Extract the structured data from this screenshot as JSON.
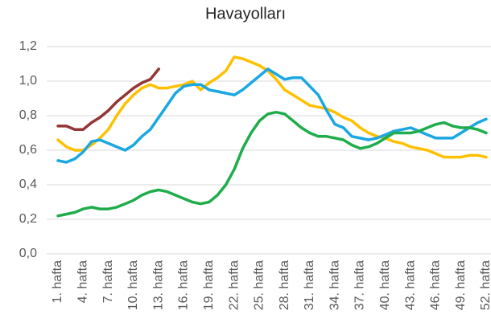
{
  "chart_data": {
    "type": "line",
    "title": "Havayolları",
    "categories": [
      "1. hafta",
      null,
      null,
      "4. hafta",
      null,
      null,
      "7. hafta",
      null,
      null,
      "10. hafta",
      null,
      null,
      "13. hafta",
      null,
      null,
      "16. hafta",
      null,
      null,
      "19. hafta",
      null,
      null,
      "22. hafta",
      null,
      null,
      "25. hafta",
      null,
      null,
      "28. hafta",
      null,
      null,
      "31. hafta",
      null,
      null,
      "34. hafta",
      null,
      null,
      "37. hafta",
      null,
      null,
      "40. hafta",
      null,
      null,
      "43. hafta",
      null,
      null,
      "46. hafta",
      null,
      null,
      "49. hafta",
      null,
      null,
      "52. hafta"
    ],
    "series": [
      {
        "color": "#943634",
        "values": [
          0.74,
          0.74,
          0.72,
          0.72,
          0.76,
          0.79,
          0.83,
          0.88,
          0.92,
          0.96,
          0.99,
          1.01,
          1.07,
          null,
          null,
          null,
          null,
          null,
          null,
          null,
          null,
          null,
          null,
          null,
          null,
          null,
          null,
          null,
          null,
          null,
          null,
          null,
          null,
          null,
          null,
          null,
          null,
          null,
          null,
          null,
          null,
          null,
          null,
          null,
          null,
          null,
          null,
          null,
          null,
          null,
          null,
          null
        ]
      },
      {
        "color": "#ffc000",
        "values": [
          0.66,
          0.62,
          0.6,
          0.6,
          0.63,
          0.67,
          0.72,
          0.8,
          0.87,
          0.92,
          0.96,
          0.98,
          0.96,
          0.96,
          0.97,
          0.98,
          1.0,
          0.95,
          0.99,
          1.02,
          1.06,
          1.14,
          1.13,
          1.11,
          1.09,
          1.06,
          1.01,
          0.95,
          0.92,
          0.89,
          0.86,
          0.85,
          0.84,
          0.82,
          0.79,
          0.77,
          0.73,
          0.7,
          0.68,
          0.67,
          0.65,
          0.64,
          0.62,
          0.61,
          0.6,
          0.58,
          0.56,
          0.56,
          0.56,
          0.57,
          0.57,
          0.56
        ]
      },
      {
        "color": "#1aa7e2",
        "values": [
          0.54,
          0.53,
          0.55,
          0.59,
          0.65,
          0.66,
          0.64,
          0.62,
          0.6,
          0.63,
          0.68,
          0.72,
          0.79,
          0.86,
          0.93,
          0.97,
          0.98,
          0.98,
          0.95,
          0.94,
          0.93,
          0.92,
          0.95,
          0.99,
          1.03,
          1.07,
          1.04,
          1.01,
          1.02,
          1.02,
          0.97,
          0.92,
          0.83,
          0.75,
          0.73,
          0.68,
          0.67,
          0.66,
          0.67,
          0.69,
          0.71,
          0.72,
          0.73,
          0.71,
          0.69,
          0.67,
          0.67,
          0.67,
          0.7,
          0.73,
          0.76,
          0.78
        ]
      },
      {
        "color": "#1fad4b",
        "values": [
          0.22,
          0.23,
          0.24,
          0.26,
          0.27,
          0.26,
          0.26,
          0.27,
          0.29,
          0.31,
          0.34,
          0.36,
          0.37,
          0.36,
          0.34,
          0.32,
          0.3,
          0.29,
          0.3,
          0.34,
          0.4,
          0.49,
          0.61,
          0.7,
          0.77,
          0.81,
          0.82,
          0.81,
          0.77,
          0.73,
          0.7,
          0.68,
          0.68,
          0.67,
          0.66,
          0.63,
          0.61,
          0.62,
          0.64,
          0.67,
          0.7,
          0.7,
          0.7,
          0.71,
          0.73,
          0.75,
          0.76,
          0.74,
          0.73,
          0.73,
          0.72,
          0.7
        ]
      }
    ],
    "ylim": [
      0,
      1.2
    ],
    "yticks": [
      {
        "value": 0,
        "label": "0,0"
      },
      {
        "value": 0.2,
        "label": "0,2"
      },
      {
        "value": 0.4,
        "label": "0,4"
      },
      {
        "value": 0.6,
        "label": "0,6"
      },
      {
        "value": 0.8,
        "label": "0,8"
      },
      {
        "value": 1.0,
        "label": "1,0"
      },
      {
        "value": 1.2,
        "label": "1,2"
      }
    ],
    "grid": true
  }
}
